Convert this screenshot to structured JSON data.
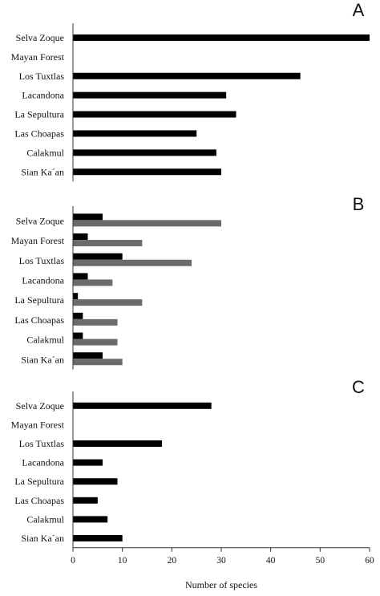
{
  "chart_data": [
    {
      "type": "bar",
      "orientation": "horizontal",
      "panel_label": "A",
      "categories": [
        "Selva Zoque",
        "Mayan Forest",
        "Los Tuxtlas",
        "Lacandona",
        "La Sepultura",
        "Las Choapas",
        "Calakmul",
        "Sian Ka´an"
      ],
      "series": [
        {
          "values": [
            60,
            0,
            46,
            31,
            33,
            25,
            29,
            30
          ],
          "color": "#000000"
        }
      ],
      "xlim": [
        0,
        60
      ]
    },
    {
      "type": "bar",
      "orientation": "horizontal",
      "panel_label": "B",
      "categories": [
        "Selva Zoque",
        "Mayan Forest",
        "Los Tuxtlas",
        "Lacandona",
        "La Sepultura",
        "Las Choapas",
        "Calakmul",
        "Sian Ka´an"
      ],
      "series": [
        {
          "values": [
            6,
            3,
            10,
            3,
            1,
            2,
            2,
            6
          ],
          "color": "#000000"
        },
        {
          "values": [
            30,
            14,
            24,
            8,
            14,
            9,
            9,
            10
          ],
          "color": "#6b6b6b"
        }
      ],
      "xlim": [
        0,
        60
      ]
    },
    {
      "type": "bar",
      "orientation": "horizontal",
      "panel_label": "C",
      "categories": [
        "Selva Zoque",
        "Mayan Forest",
        "Los Tuxtlas",
        "Lacandona",
        "La Sepultura",
        "Las Choapas",
        "Calakmul",
        "Sian Ka´an"
      ],
      "series": [
        {
          "values": [
            28,
            0,
            18,
            6,
            9,
            5,
            7,
            10
          ],
          "color": "#000000"
        }
      ],
      "xlim": [
        0,
        60
      ],
      "xticks": [
        "0",
        "10",
        "20",
        "30",
        "40",
        "50",
        "60"
      ],
      "xlabel": "Number of species"
    }
  ]
}
